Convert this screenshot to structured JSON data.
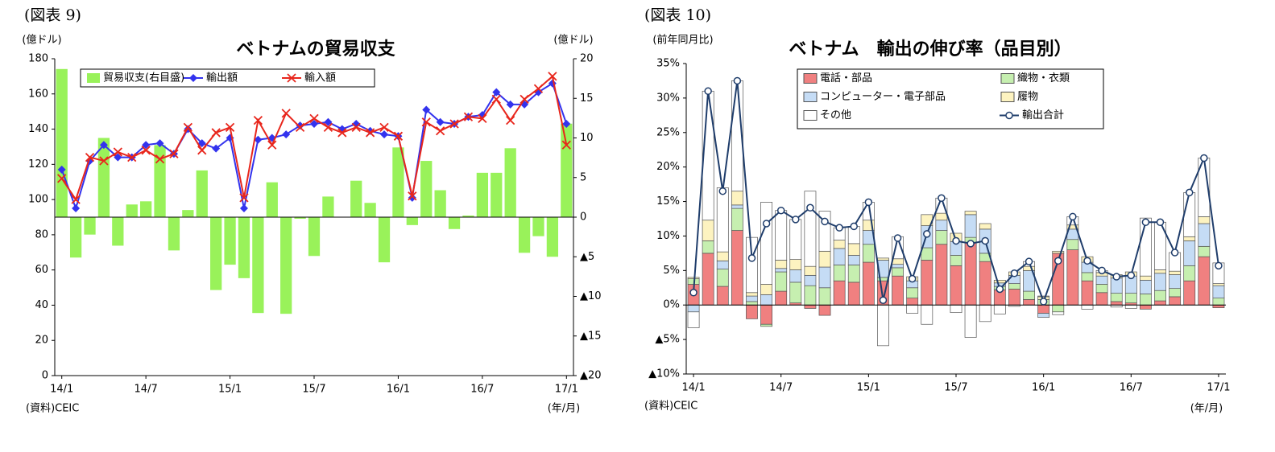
{
  "chart_data": [
    {
      "type": "bar",
      "label": "(図表 9)",
      "title": "ベトナムの貿易収支",
      "y_label": "(億ドル)",
      "y2_label": "(億ドル)",
      "x_label": "(年/月)",
      "source": "(資料)CEIC",
      "categories": [
        "14/1",
        null,
        null,
        null,
        null,
        null,
        "14/7",
        null,
        null,
        null,
        null,
        null,
        "15/1",
        null,
        null,
        null,
        null,
        null,
        "15/7",
        null,
        null,
        null,
        null,
        null,
        "16/1",
        null,
        null,
        null,
        null,
        null,
        "16/7",
        null,
        null,
        null,
        null,
        null,
        "17/1"
      ],
      "ylim": [
        0,
        180
      ],
      "yticks": [
        0,
        20,
        40,
        60,
        80,
        100,
        120,
        140,
        160,
        180
      ],
      "y2lim": [
        -20,
        20
      ],
      "y2ticks": [
        {
          "value": -20,
          "label": "▲20"
        },
        {
          "value": -15,
          "label": "▲15"
        },
        {
          "value": -10,
          "label": "▲10"
        },
        {
          "value": -5,
          "label": "▲5"
        },
        0,
        5,
        10,
        15,
        20
      ],
      "grid": false,
      "stacked": false,
      "legend": "top",
      "series": [
        {
          "name": "貿易収支(右目盛)",
          "type": "bar",
          "axis": "y2",
          "color": "#99f25a",
          "values": [
            18.7,
            -5.1,
            -2.2,
            10.0,
            -3.6,
            1.6,
            2.0,
            9.1,
            -4.2,
            0.9,
            5.9,
            -9.2,
            -6.0,
            -7.7,
            -12.1,
            4.4,
            -12.2,
            -0.2,
            -4.9,
            2.6,
            0,
            4.6,
            1.8,
            -5.7,
            8.8,
            -1.0,
            7.1,
            3.4,
            -1.5,
            0.2,
            5.6,
            5.6,
            8.7,
            -4.5,
            -2.4,
            -5.0,
            11.8
          ]
        },
        {
          "name": "輸出額",
          "type": "line",
          "marker": "diamond",
          "color": "#3333ee",
          "values": [
            117,
            95,
            122,
            131,
            124,
            124,
            131,
            132,
            126,
            140,
            132,
            129,
            135,
            95,
            134,
            135,
            137,
            142,
            143,
            144,
            140,
            143,
            139,
            137,
            136,
            101,
            151,
            144,
            143,
            147,
            148,
            161,
            154,
            154,
            161,
            166,
            143
          ]
        },
        {
          "name": "輸入額",
          "type": "line",
          "marker": "x",
          "color": "#e8261c",
          "values": [
            112,
            100,
            124,
            122,
            127,
            124,
            128,
            123,
            126,
            141,
            128,
            138,
            141,
            101,
            145,
            131,
            149,
            141,
            146,
            141,
            138,
            141,
            138,
            141,
            136,
            102,
            144,
            139,
            143,
            147,
            146,
            157,
            145,
            157,
            163,
            170,
            131
          ]
        }
      ]
    },
    {
      "type": "bar",
      "label": "(図表 10)",
      "title": "ベトナム　輸出の伸び率（品目別）",
      "y_label": "(前年同月比)",
      "x_label": "(年/月)",
      "source": "(資料)CEIC",
      "categories": [
        "14/1",
        null,
        null,
        null,
        null,
        null,
        "14/7",
        null,
        null,
        null,
        null,
        null,
        "15/1",
        null,
        null,
        null,
        null,
        null,
        "15/7",
        null,
        null,
        null,
        null,
        null,
        "16/1",
        null,
        null,
        null,
        null,
        null,
        "16/7",
        null,
        null,
        null,
        null,
        null,
        "17/1"
      ],
      "ylim": [
        -10,
        35
      ],
      "yticks": [
        {
          "value": -10,
          "label": "▲10%"
        },
        {
          "value": -5,
          "label": "▲5%"
        },
        {
          "value": 0,
          "label": "0%"
        },
        {
          "value": 5,
          "label": "5%"
        },
        {
          "value": 10,
          "label": "10%"
        },
        {
          "value": 15,
          "label": "15%"
        },
        {
          "value": 20,
          "label": "20%"
        },
        {
          "value": 25,
          "label": "25%"
        },
        {
          "value": 30,
          "label": "30%"
        },
        {
          "value": 35,
          "label": "35%"
        }
      ],
      "grid": false,
      "stacked": true,
      "legend": "top",
      "series": [
        {
          "name": "電話・部品",
          "type": "bar",
          "color": "#f08080",
          "values": [
            3,
            7.5,
            2.7,
            10.8,
            -2,
            -2.8,
            2,
            0.3,
            -0.5,
            -1.5,
            3.5,
            3.3,
            6.2,
            3.5,
            4.2,
            1,
            6.5,
            8.8,
            5.7,
            9,
            6.3,
            2.2,
            2.3,
            0.8,
            -1.2,
            7.5,
            8,
            3.5,
            1.8,
            0.5,
            0.3,
            -0.6,
            0.6,
            1.2,
            3.5,
            7,
            -0.4
          ]
        },
        {
          "name": "織物・衣類",
          "type": "bar",
          "color": "#c6efb0",
          "values": [
            0.8,
            1.8,
            2.5,
            3.2,
            0.5,
            -0.3,
            2.8,
            3.0,
            2.8,
            2.5,
            2.3,
            2.5,
            2.6,
            0.5,
            1.2,
            1.5,
            1.8,
            2,
            1.5,
            0.8,
            1.2,
            0.5,
            0.8,
            1.2,
            0.8,
            -1,
            1.5,
            1.2,
            1.2,
            1.2,
            1.4,
            1.6,
            1.5,
            1.2,
            2.2,
            1.5,
            1.0
          ]
        },
        {
          "name": "コンピューター・電子部品",
          "type": "bar",
          "color": "#c5dcf5",
          "values": [
            -1,
            0,
            1.2,
            0.5,
            0.8,
            1.5,
            0.5,
            1.8,
            1.5,
            3.0,
            2.4,
            1.4,
            2.0,
            2.5,
            0.5,
            1.0,
            3.2,
            1.5,
            2,
            3.3,
            3.5,
            0.5,
            1.2,
            3.0,
            -0.6,
            0,
            1.5,
            1.5,
            1.2,
            2.2,
            2.5,
            2.0,
            2.5,
            2.0,
            3.6,
            3.3,
            1.8
          ]
        },
        {
          "name": "履物",
          "type": "bar",
          "color": "#fdf3c0",
          "values": [
            0.2,
            3.0,
            1.3,
            2.0,
            0.5,
            1.5,
            1.2,
            1.5,
            1.3,
            2.3,
            1.2,
            1.7,
            1.5,
            0.3,
            0.8,
            0.6,
            1.6,
            1.0,
            1.2,
            0.5,
            0.8,
            0.4,
            0.5,
            0.6,
            0.4,
            0.3,
            0.6,
            0.8,
            0.5,
            0.5,
            0.6,
            0.6,
            0.5,
            0.5,
            0.6,
            1.0,
            0.3
          ]
        },
        {
          "name": "その他",
          "type": "bar",
          "color": "#ffffff",
          "values": [
            -2.3,
            18.7,
            9.3,
            16,
            8,
            11.9,
            7.2,
            5.8,
            10.9,
            5.8,
            1.8,
            2.5,
            2.6,
            -5.9,
            3.2,
            -1.2,
            -2.8,
            2.2,
            -1.1,
            -4.7,
            -2.4,
            -1.3,
            -0.2,
            0.7,
            0.1,
            -0.4,
            1.2,
            -0.6,
            0.3,
            -0.3,
            -0.5,
            8.4,
            6.9,
            2.7,
            6.4,
            8.5,
            3.0
          ]
        },
        {
          "name": "輸出合計",
          "type": "line",
          "marker": "circle",
          "color": "#1f3d6b",
          "values": [
            1.8,
            31,
            16.5,
            32.5,
            6.8,
            11.8,
            13.7,
            12.4,
            14.1,
            12.1,
            11.2,
            11.4,
            14.9,
            0.7,
            9.7,
            3.8,
            10.3,
            15.5,
            9.3,
            8.9,
            9.3,
            2.3,
            4.6,
            6.3,
            0.5,
            6.4,
            12.8,
            6.4,
            5.0,
            4.1,
            4.3,
            12.0,
            12.0,
            7.6,
            16.3,
            21.3,
            5.7
          ]
        }
      ]
    }
  ]
}
